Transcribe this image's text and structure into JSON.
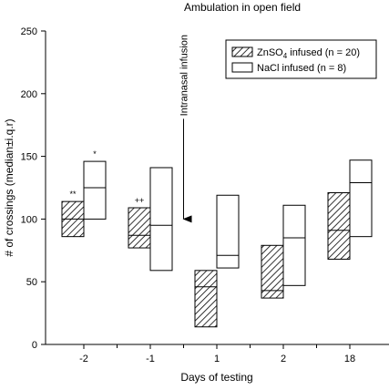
{
  "chart_data": {
    "type": "box",
    "title": "Ambulation in open field",
    "xlabel": "Days of testing",
    "ylabel": "# of crossings (median±i.q.r)",
    "ylim": [
      0,
      250
    ],
    "yticks": [
      0,
      50,
      100,
      150,
      200,
      250
    ],
    "categories": [
      "-2",
      "-1",
      "1",
      "2",
      "18"
    ],
    "legend": {
      "position": "top-right",
      "entries": [
        {
          "label": "ZnSO",
          "subscript": "4",
          "suffix": " infused (n = 20)",
          "pattern": "hatched"
        },
        {
          "label": "NaCl infused (n = 8)",
          "subscript": "",
          "suffix": "",
          "pattern": "open"
        }
      ]
    },
    "series": [
      {
        "name": "ZnSO4 infused (n = 20)",
        "pattern": "hatched",
        "boxes": [
          {
            "q1": 86,
            "median": 100,
            "q3": 114,
            "sig": "**"
          },
          {
            "q1": 77,
            "median": 87,
            "q3": 109,
            "sig": "++"
          },
          {
            "q1": 14,
            "median": 46,
            "q3": 59,
            "sig": ""
          },
          {
            "q1": 37,
            "median": 43,
            "q3": 79,
            "sig": ""
          },
          {
            "q1": 68,
            "median": 91,
            "q3": 121,
            "sig": ""
          }
        ]
      },
      {
        "name": "NaCl infused (n = 8)",
        "pattern": "open",
        "boxes": [
          {
            "q1": 100,
            "median": 125,
            "q3": 146,
            "sig": "*"
          },
          {
            "q1": 59,
            "median": 95,
            "q3": 141,
            "sig": ""
          },
          {
            "q1": 61,
            "median": 71,
            "q3": 119,
            "sig": ""
          },
          {
            "q1": 47,
            "median": 85,
            "q3": 111,
            "sig": ""
          },
          {
            "q1": 86,
            "median": 129,
            "q3": 147,
            "sig": ""
          }
        ]
      }
    ],
    "annotation": {
      "text": "Intranasal infusion",
      "arrow_from_y": 180,
      "arrow_to_y": 100,
      "between_categories": [
        "-1",
        "1"
      ]
    }
  }
}
